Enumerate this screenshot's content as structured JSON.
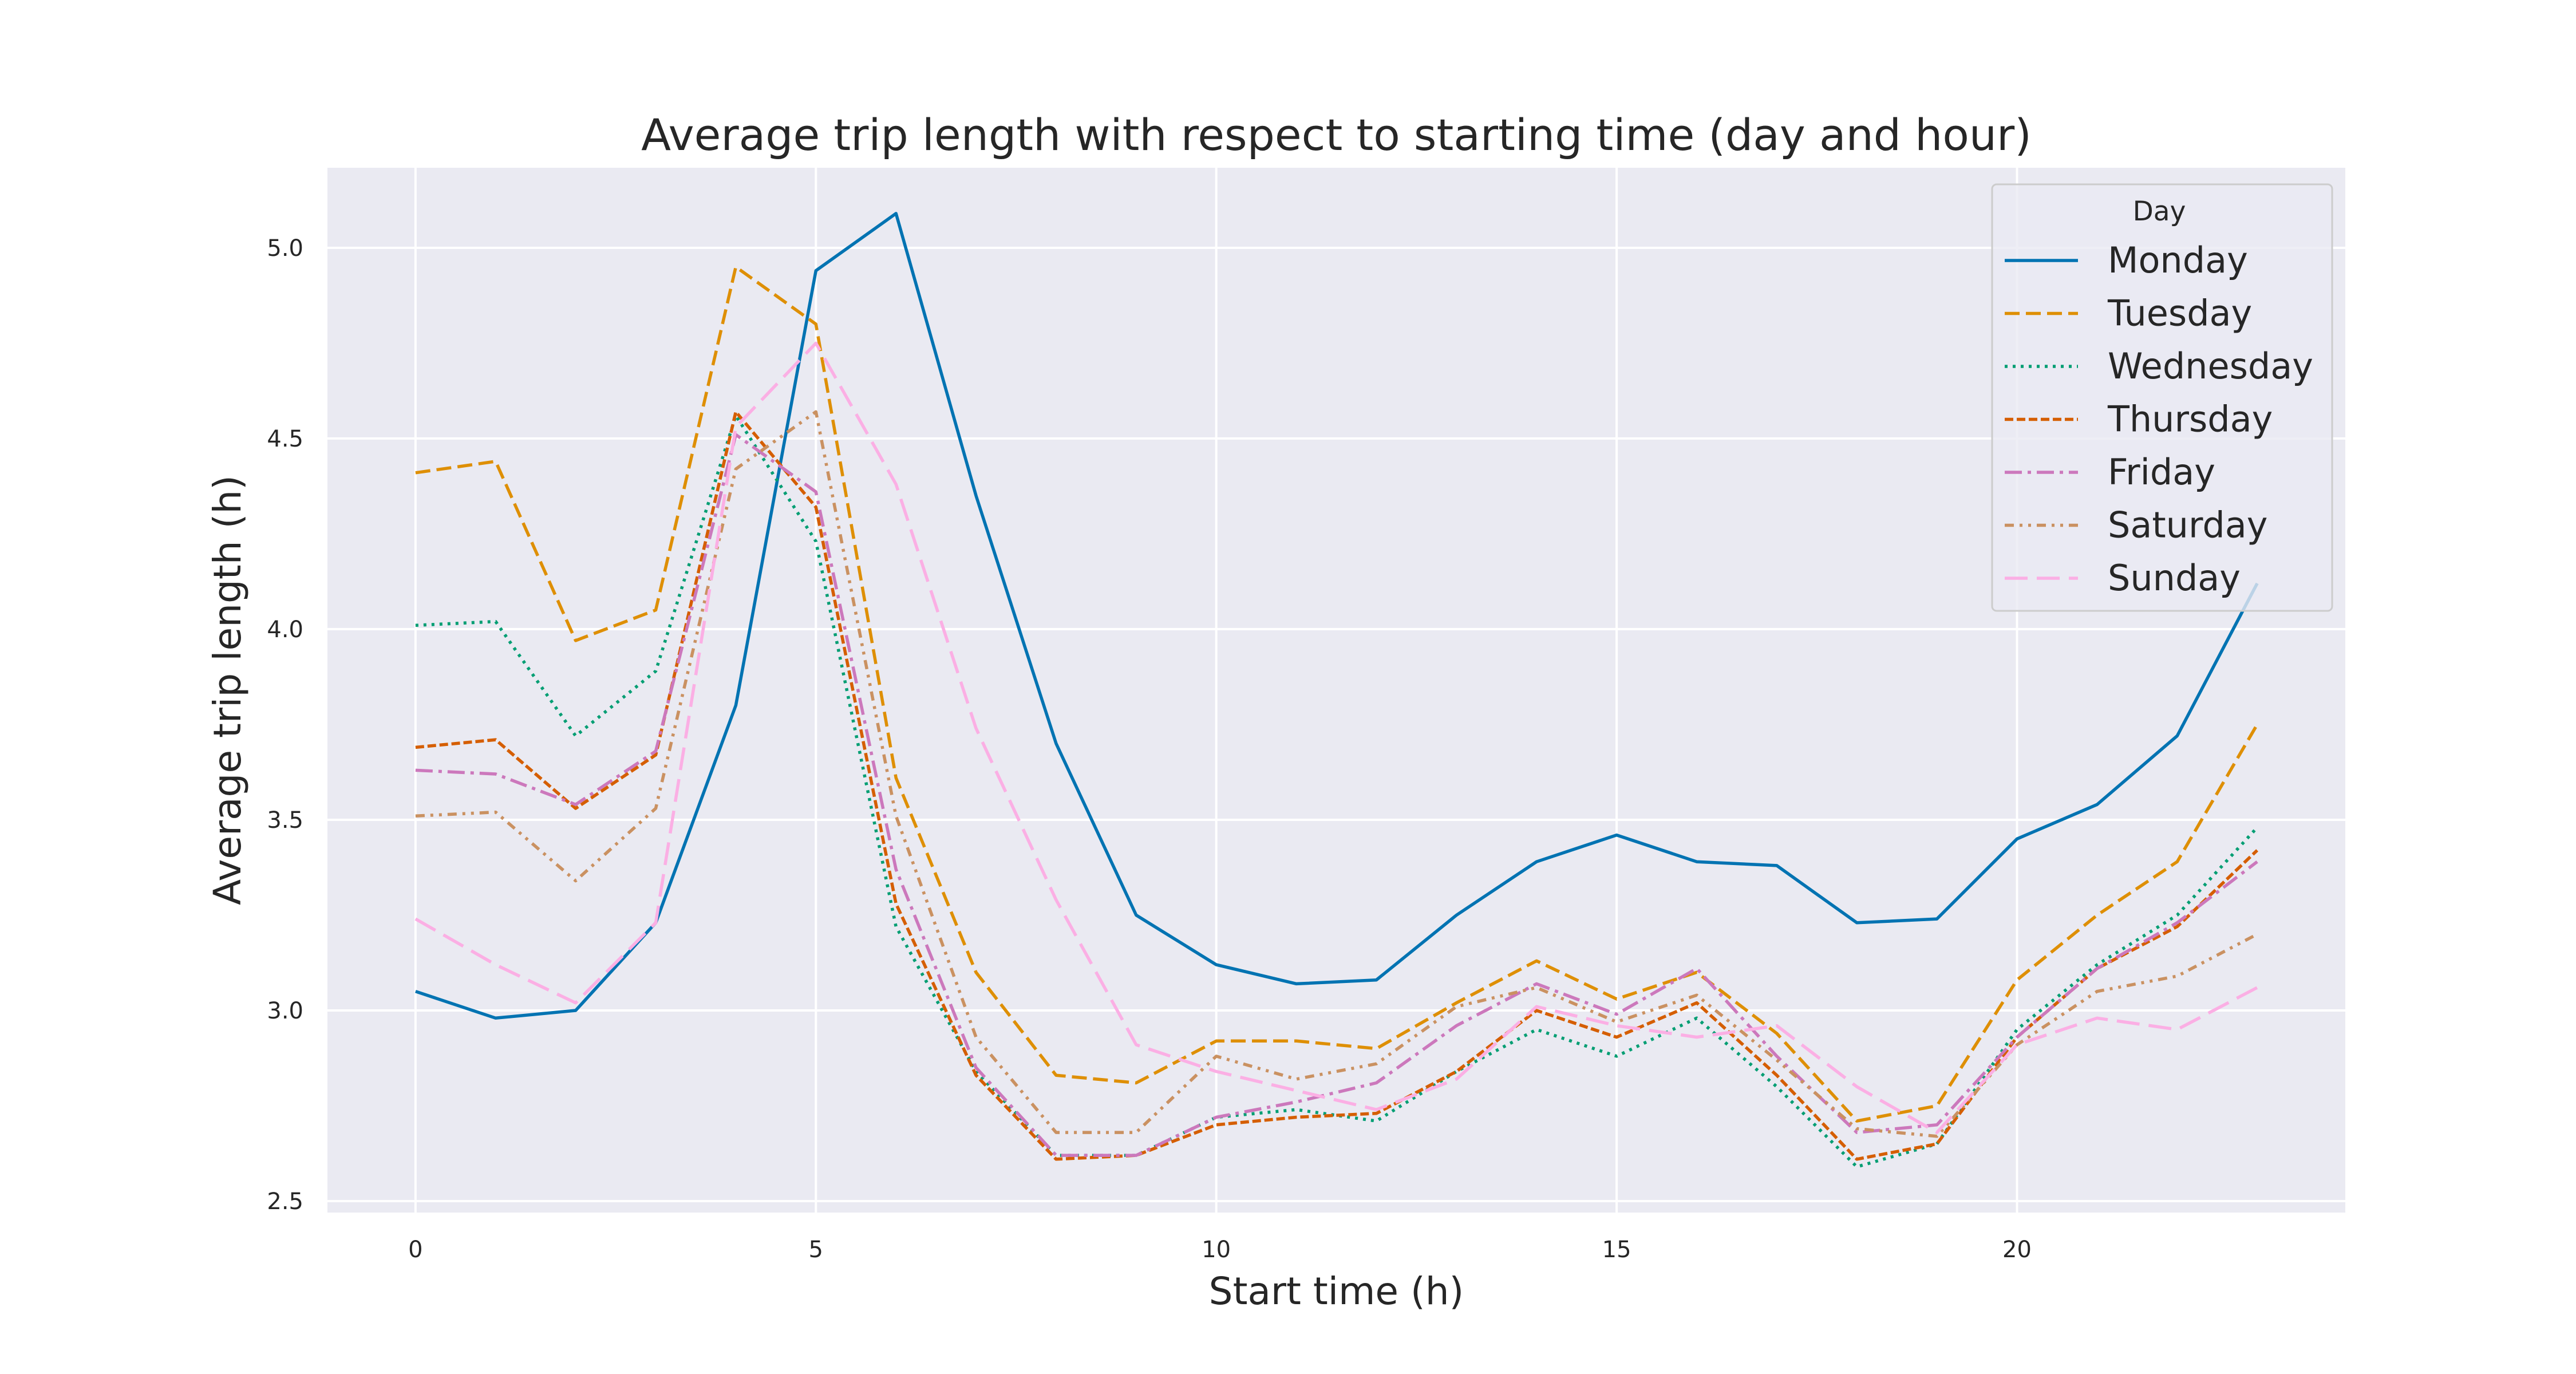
{
  "chart_data": {
    "type": "line",
    "title": "Average trip length with respect to starting time (day and hour)",
    "xlabel": "Start time (h)",
    "ylabel": "Average trip length (h)",
    "xlim": [
      -1.1,
      24.1
    ],
    "ylim": [
      2.47,
      5.21
    ],
    "xticks": [
      0,
      5,
      10,
      15,
      20
    ],
    "yticks": [
      2.5,
      3.0,
      3.5,
      4.0,
      4.5,
      5.0
    ],
    "xtick_labels": [
      "0",
      "5",
      "10",
      "15",
      "20"
    ],
    "ytick_labels": [
      "2.5",
      "3.0",
      "3.5",
      "4.0",
      "4.5",
      "5.0"
    ],
    "grid": true,
    "legend": {
      "title": "Day",
      "position": "top-right"
    },
    "x": [
      0,
      1,
      2,
      3,
      4,
      5,
      6,
      7,
      8,
      9,
      10,
      11,
      12,
      13,
      14,
      15,
      16,
      17,
      18,
      19,
      20,
      21,
      22,
      23
    ],
    "series": [
      {
        "name": "Monday",
        "color": "#0173b2",
        "dash": "solid",
        "values": [
          3.05,
          2.98,
          3.0,
          3.23,
          3.8,
          4.94,
          5.09,
          4.35,
          3.7,
          3.25,
          3.12,
          3.07,
          3.08,
          3.25,
          3.39,
          3.46,
          3.39,
          3.38,
          3.23,
          3.24,
          3.45,
          3.54,
          3.72,
          4.12
        ]
      },
      {
        "name": "Tuesday",
        "color": "#de8f05",
        "dash": "dashed",
        "values": [
          4.41,
          4.44,
          3.97,
          4.05,
          4.95,
          4.8,
          3.61,
          3.1,
          2.83,
          2.81,
          2.92,
          2.92,
          2.9,
          3.02,
          3.13,
          3.03,
          3.1,
          2.94,
          2.71,
          2.75,
          3.08,
          3.25,
          3.39,
          3.75
        ]
      },
      {
        "name": "Wednesday",
        "color": "#029e73",
        "dash": "dotted",
        "values": [
          4.01,
          4.02,
          3.72,
          3.89,
          4.56,
          4.23,
          3.22,
          2.84,
          2.62,
          2.62,
          2.72,
          2.74,
          2.71,
          2.84,
          2.95,
          2.88,
          2.98,
          2.8,
          2.59,
          2.65,
          2.95,
          3.12,
          3.25,
          3.48
        ]
      },
      {
        "name": "Thursday",
        "color": "#d55e00",
        "dash": "dense-dash",
        "values": [
          3.69,
          3.71,
          3.53,
          3.67,
          4.57,
          4.32,
          3.28,
          2.83,
          2.61,
          2.62,
          2.7,
          2.72,
          2.73,
          2.84,
          3.0,
          2.93,
          3.02,
          2.83,
          2.61,
          2.65,
          2.93,
          3.11,
          3.22,
          3.42
        ]
      },
      {
        "name": "Friday",
        "color": "#cc78bc",
        "dash": "dashdot",
        "values": [
          3.63,
          3.62,
          3.54,
          3.68,
          4.51,
          4.36,
          3.37,
          2.85,
          2.62,
          2.62,
          2.72,
          2.76,
          2.81,
          2.96,
          3.07,
          2.99,
          3.11,
          2.88,
          2.68,
          2.7,
          2.93,
          3.11,
          3.23,
          3.39
        ]
      },
      {
        "name": "Saturday",
        "color": "#ca9161",
        "dash": "loose-dashdotdot",
        "values": [
          3.51,
          3.52,
          3.34,
          3.53,
          4.42,
          4.57,
          3.51,
          2.93,
          2.68,
          2.68,
          2.88,
          2.82,
          2.86,
          3.01,
          3.06,
          2.97,
          3.04,
          2.87,
          2.69,
          2.67,
          2.91,
          3.05,
          3.09,
          3.2
        ]
      },
      {
        "name": "Sunday",
        "color": "#fbafe4",
        "dash": "long-dash-gap",
        "values": [
          3.24,
          3.12,
          3.02,
          3.23,
          4.53,
          4.75,
          4.38,
          3.74,
          3.29,
          2.91,
          2.84,
          2.79,
          2.74,
          2.82,
          3.01,
          2.96,
          2.93,
          2.96,
          2.8,
          2.68,
          2.91,
          2.98,
          2.95,
          3.06
        ]
      }
    ]
  }
}
